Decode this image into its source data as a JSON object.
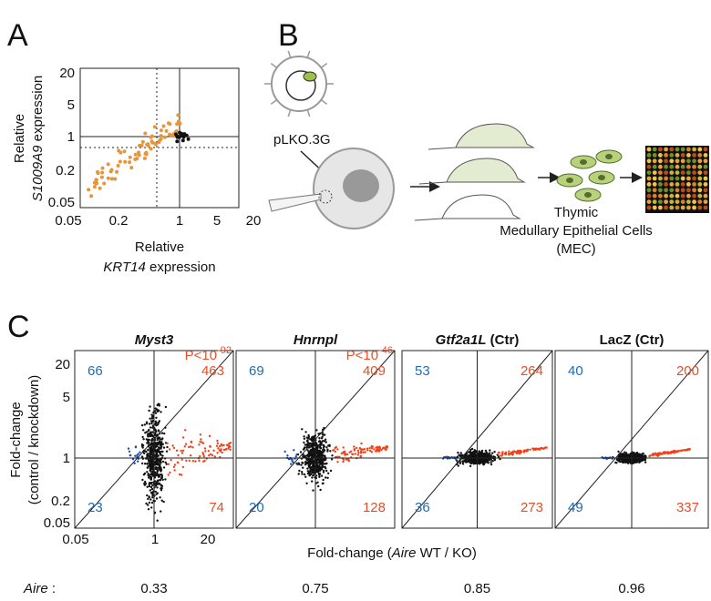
{
  "panel_a": {
    "label": "A",
    "y_label_top": "Relative",
    "y_label_gene": "S1009A9",
    "y_label_rest": " expression",
    "y_ticks": [
      20,
      5,
      1,
      0.2,
      0.05
    ],
    "x_ticks": [
      0.05,
      0.2,
      1,
      5,
      20
    ],
    "x_label_top": "Relative",
    "x_label_gene": "KRT14",
    "x_label_rest": " expression"
  },
  "panel_b": {
    "label": "B",
    "vector": "pLKO.3G",
    "cell_label": [
      "Thymic",
      "Medullary Epithelial Cells",
      "(MEC)"
    ]
  },
  "panel_c": {
    "label": "C",
    "y_label": [
      "Fold-change",
      "(control / knockdown)"
    ],
    "y_ticks": [
      20,
      5,
      1,
      0.2,
      0.05
    ],
    "x_ticks": [
      0.05,
      1,
      20
    ],
    "x_label_prefix": "Fold-change (",
    "x_label_gene": "Aire",
    "x_label_suffix": " WT / KO)",
    "aire_label": "Aire",
    "aire_colon": " :",
    "plots": [
      {
        "gene": "Myst3",
        "suffix": "",
        "italic": true,
        "p_base": "P<10",
        "p_exp": "-92",
        "counts": {
          "top_left": 66,
          "top_right": 463,
          "bottom_left": 23,
          "bottom_right": 74
        },
        "aire": 0.33
      },
      {
        "gene": "Hnrnpl",
        "suffix": "",
        "italic": true,
        "p_base": "P<10",
        "p_exp": "-46",
        "counts": {
          "top_left": 69,
          "top_right": 409,
          "bottom_left": 20,
          "bottom_right": 128
        },
        "aire": 0.75
      },
      {
        "gene": "Gtf2a1L",
        "suffix": " (Ctr)",
        "italic": true,
        "counts": {
          "top_left": 53,
          "top_right": 264,
          "bottom_left": 36,
          "bottom_right": 273
        },
        "aire": 0.85
      },
      {
        "gene": "LacZ",
        "suffix": " (Ctr)",
        "italic": false,
        "counts": {
          "top_left": 40,
          "top_right": 200,
          "bottom_left": 49,
          "bottom_right": 337
        },
        "aire": 0.96
      }
    ]
  }
}
